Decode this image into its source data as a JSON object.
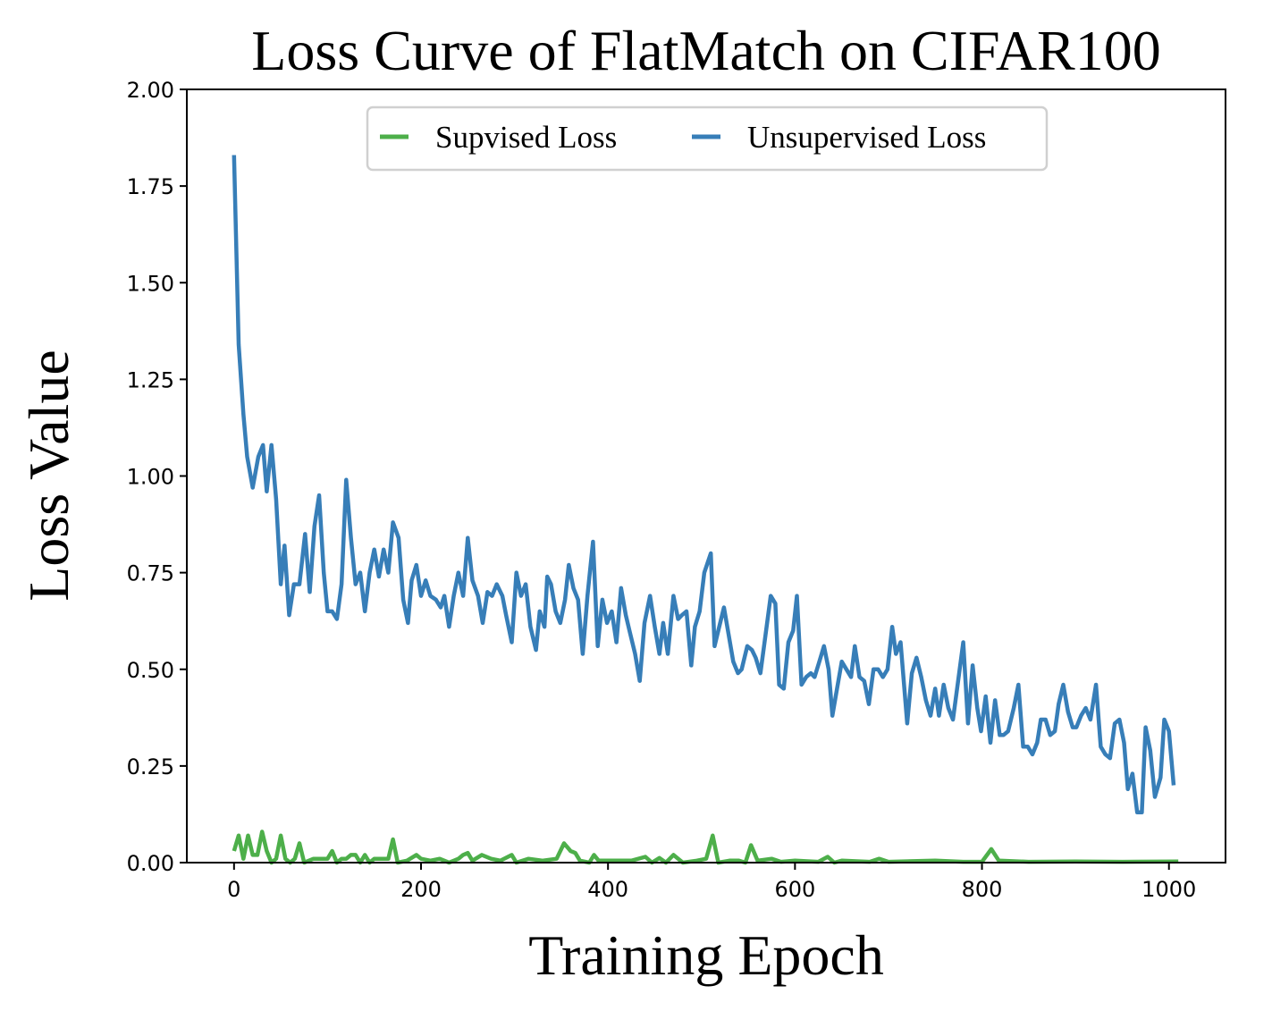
{
  "chart_data": {
    "type": "line",
    "title": "Loss Curve of FlatMatch on CIFAR100",
    "xlabel": "Training Epoch",
    "ylabel": "Loss Value",
    "xlim": [
      -50.5,
      1060.5
    ],
    "ylim": [
      0,
      2
    ],
    "xticks": [
      0,
      200,
      400,
      600,
      800,
      1000
    ],
    "xtick_labels": [
      "0",
      "200",
      "400",
      "600",
      "800",
      "1000"
    ],
    "yticks": [
      0,
      0.25,
      0.5,
      0.75,
      1.0,
      1.25,
      1.5,
      1.75,
      2.0
    ],
    "ytick_labels": [
      "0.00",
      "0.25",
      "0.50",
      "0.75",
      "1.00",
      "1.25",
      "1.50",
      "1.75",
      "2.00"
    ],
    "grid": false,
    "legend": {
      "placement": "upper-center",
      "columns": 2
    },
    "series": [
      {
        "name": "Supvised Loss",
        "color": "#4daf4a",
        "points": [
          [
            0,
            0.03
          ],
          [
            5,
            0.07
          ],
          [
            10,
            0.01
          ],
          [
            15,
            0.07
          ],
          [
            20,
            0.02
          ],
          [
            25,
            0.02
          ],
          [
            30,
            0.08
          ],
          [
            35,
            0.03
          ],
          [
            40,
            0.0
          ],
          [
            45,
            0.01
          ],
          [
            50,
            0.07
          ],
          [
            55,
            0.01
          ],
          [
            60,
            0.0
          ],
          [
            65,
            0.01
          ],
          [
            70,
            0.05
          ],
          [
            75,
            0.0
          ],
          [
            80,
            0.005
          ],
          [
            85,
            0.01
          ],
          [
            90,
            0.01
          ],
          [
            95,
            0.01
          ],
          [
            100,
            0.01
          ],
          [
            105,
            0.03
          ],
          [
            110,
            0.0
          ],
          [
            115,
            0.01
          ],
          [
            120,
            0.01
          ],
          [
            125,
            0.02
          ],
          [
            130,
            0.02
          ],
          [
            135,
            0.0
          ],
          [
            140,
            0.02
          ],
          [
            145,
            0.0
          ],
          [
            150,
            0.01
          ],
          [
            160,
            0.01
          ],
          [
            165,
            0.01
          ],
          [
            170,
            0.06
          ],
          [
            175,
            0.0
          ],
          [
            185,
            0.005
          ],
          [
            195,
            0.02
          ],
          [
            200,
            0.01
          ],
          [
            210,
            0.005
          ],
          [
            220,
            0.01
          ],
          [
            230,
            0.0
          ],
          [
            240,
            0.01
          ],
          [
            245,
            0.02
          ],
          [
            250,
            0.025
          ],
          [
            255,
            0.005
          ],
          [
            265,
            0.02
          ],
          [
            275,
            0.01
          ],
          [
            285,
            0.005
          ],
          [
            297,
            0.02
          ],
          [
            302,
            0.0
          ],
          [
            315,
            0.01
          ],
          [
            330,
            0.005
          ],
          [
            345,
            0.01
          ],
          [
            353,
            0.05
          ],
          [
            360,
            0.03
          ],
          [
            365,
            0.025
          ],
          [
            370,
            0.005
          ],
          [
            380,
            0.0
          ],
          [
            385,
            0.02
          ],
          [
            390,
            0.005
          ],
          [
            410,
            0.005
          ],
          [
            425,
            0.005
          ],
          [
            440,
            0.015
          ],
          [
            447,
            0.0
          ],
          [
            455,
            0.012
          ],
          [
            462,
            0.0
          ],
          [
            470,
            0.02
          ],
          [
            480,
            0.0
          ],
          [
            495,
            0.005
          ],
          [
            505,
            0.01
          ],
          [
            512,
            0.07
          ],
          [
            518,
            0.0
          ],
          [
            530,
            0.005
          ],
          [
            540,
            0.005
          ],
          [
            547,
            0.0
          ],
          [
            553,
            0.045
          ],
          [
            560,
            0.005
          ],
          [
            575,
            0.01
          ],
          [
            585,
            0.002
          ],
          [
            600,
            0.005
          ],
          [
            625,
            0.002
          ],
          [
            635,
            0.015
          ],
          [
            642,
            0.0
          ],
          [
            650,
            0.005
          ],
          [
            680,
            0.002
          ],
          [
            690,
            0.01
          ],
          [
            700,
            0.002
          ],
          [
            750,
            0.005
          ],
          [
            780,
            0.002
          ],
          [
            800,
            0.002
          ],
          [
            810,
            0.035
          ],
          [
            818,
            0.005
          ],
          [
            850,
            0.002
          ],
          [
            900,
            0.003
          ],
          [
            950,
            0.002
          ],
          [
            1010,
            0.003
          ]
        ]
      },
      {
        "name": "Unsupervised Loss",
        "color": "#377eb8",
        "points": [
          [
            0,
            1.83
          ],
          [
            5,
            1.34
          ],
          [
            10,
            1.16
          ],
          [
            14,
            1.05
          ],
          [
            20,
            0.97
          ],
          [
            26,
            1.05
          ],
          [
            31,
            1.08
          ],
          [
            35,
            0.96
          ],
          [
            40,
            1.08
          ],
          [
            45,
            0.94
          ],
          [
            50,
            0.72
          ],
          [
            54,
            0.82
          ],
          [
            59,
            0.64
          ],
          [
            64,
            0.72
          ],
          [
            70,
            0.72
          ],
          [
            76,
            0.85
          ],
          [
            81,
            0.7
          ],
          [
            86,
            0.87
          ],
          [
            91,
            0.95
          ],
          [
            96,
            0.75
          ],
          [
            100,
            0.65
          ],
          [
            105,
            0.65
          ],
          [
            110,
            0.63
          ],
          [
            115,
            0.72
          ],
          [
            120,
            0.99
          ],
          [
            125,
            0.84
          ],
          [
            130,
            0.72
          ],
          [
            135,
            0.75
          ],
          [
            140,
            0.65
          ],
          [
            145,
            0.75
          ],
          [
            150,
            0.81
          ],
          [
            155,
            0.74
          ],
          [
            160,
            0.81
          ],
          [
            165,
            0.75
          ],
          [
            170,
            0.88
          ],
          [
            176,
            0.84
          ],
          [
            181,
            0.68
          ],
          [
            186,
            0.62
          ],
          [
            190,
            0.73
          ],
          [
            195,
            0.77
          ],
          [
            200,
            0.69
          ],
          [
            205,
            0.73
          ],
          [
            210,
            0.69
          ],
          [
            216,
            0.68
          ],
          [
            221,
            0.66
          ],
          [
            225,
            0.69
          ],
          [
            230,
            0.61
          ],
          [
            235,
            0.69
          ],
          [
            240,
            0.75
          ],
          [
            245,
            0.69
          ],
          [
            250,
            0.84
          ],
          [
            255,
            0.73
          ],
          [
            261,
            0.69
          ],
          [
            266,
            0.62
          ],
          [
            271,
            0.7
          ],
          [
            276,
            0.69
          ],
          [
            281,
            0.72
          ],
          [
            287,
            0.69
          ],
          [
            291,
            0.64
          ],
          [
            297,
            0.57
          ],
          [
            302,
            0.75
          ],
          [
            307,
            0.69
          ],
          [
            312,
            0.72
          ],
          [
            317,
            0.61
          ],
          [
            323,
            0.55
          ],
          [
            327,
            0.65
          ],
          [
            332,
            0.61
          ],
          [
            335,
            0.74
          ],
          [
            339,
            0.72
          ],
          [
            344,
            0.65
          ],
          [
            349,
            0.62
          ],
          [
            354,
            0.68
          ],
          [
            358,
            0.77
          ],
          [
            363,
            0.71
          ],
          [
            368,
            0.68
          ],
          [
            373,
            0.54
          ],
          [
            378,
            0.69
          ],
          [
            384,
            0.83
          ],
          [
            389,
            0.56
          ],
          [
            394,
            0.68
          ],
          [
            399,
            0.62
          ],
          [
            404,
            0.65
          ],
          [
            409,
            0.57
          ],
          [
            414,
            0.71
          ],
          [
            419,
            0.64
          ],
          [
            423,
            0.6
          ],
          [
            429,
            0.54
          ],
          [
            434,
            0.47
          ],
          [
            439,
            0.62
          ],
          [
            445,
            0.69
          ],
          [
            450,
            0.61
          ],
          [
            455,
            0.54
          ],
          [
            459,
            0.62
          ],
          [
            464,
            0.54
          ],
          [
            470,
            0.69
          ],
          [
            475,
            0.63
          ],
          [
            479,
            0.64
          ],
          [
            484,
            0.65
          ],
          [
            489,
            0.51
          ],
          [
            493,
            0.61
          ],
          [
            498,
            0.65
          ],
          [
            503,
            0.75
          ],
          [
            510,
            0.8
          ],
          [
            514,
            0.56
          ],
          [
            519,
            0.61
          ],
          [
            524,
            0.66
          ],
          [
            529,
            0.59
          ],
          [
            534,
            0.52
          ],
          [
            539,
            0.49
          ],
          [
            543,
            0.5
          ],
          [
            549,
            0.56
          ],
          [
            554,
            0.55
          ],
          [
            558,
            0.53
          ],
          [
            563,
            0.49
          ],
          [
            568,
            0.58
          ],
          [
            574,
            0.69
          ],
          [
            579,
            0.67
          ],
          [
            583,
            0.46
          ],
          [
            588,
            0.45
          ],
          [
            593,
            0.57
          ],
          [
            598,
            0.6
          ],
          [
            602,
            0.69
          ],
          [
            607,
            0.46
          ],
          [
            612,
            0.48
          ],
          [
            617,
            0.49
          ],
          [
            621,
            0.48
          ],
          [
            626,
            0.52
          ],
          [
            631,
            0.56
          ],
          [
            636,
            0.5
          ],
          [
            640,
            0.38
          ],
          [
            645,
            0.45
          ],
          [
            650,
            0.52
          ],
          [
            655,
            0.5
          ],
          [
            660,
            0.48
          ],
          [
            664,
            0.56
          ],
          [
            669,
            0.48
          ],
          [
            674,
            0.47
          ],
          [
            679,
            0.41
          ],
          [
            684,
            0.5
          ],
          [
            689,
            0.5
          ],
          [
            694,
            0.48
          ],
          [
            699,
            0.5
          ],
          [
            704,
            0.61
          ],
          [
            708,
            0.54
          ],
          [
            713,
            0.57
          ],
          [
            720,
            0.36
          ],
          [
            725,
            0.49
          ],
          [
            730,
            0.53
          ],
          [
            735,
            0.48
          ],
          [
            740,
            0.42
          ],
          [
            745,
            0.38
          ],
          [
            750,
            0.45
          ],
          [
            754,
            0.38
          ],
          [
            759,
            0.46
          ],
          [
            764,
            0.4
          ],
          [
            769,
            0.37
          ],
          [
            774,
            0.46
          ],
          [
            780,
            0.57
          ],
          [
            785,
            0.36
          ],
          [
            790,
            0.51
          ],
          [
            795,
            0.4
          ],
          [
            799,
            0.34
          ],
          [
            804,
            0.43
          ],
          [
            809,
            0.31
          ],
          [
            814,
            0.42
          ],
          [
            819,
            0.33
          ],
          [
            823,
            0.33
          ],
          [
            828,
            0.34
          ],
          [
            834,
            0.4
          ],
          [
            839,
            0.46
          ],
          [
            844,
            0.3
          ],
          [
            849,
            0.3
          ],
          [
            854,
            0.28
          ],
          [
            859,
            0.31
          ],
          [
            863,
            0.37
          ],
          [
            868,
            0.37
          ],
          [
            873,
            0.33
          ],
          [
            878,
            0.34
          ],
          [
            882,
            0.41
          ],
          [
            887,
            0.46
          ],
          [
            892,
            0.39
          ],
          [
            897,
            0.35
          ],
          [
            901,
            0.35
          ],
          [
            906,
            0.38
          ],
          [
            911,
            0.4
          ],
          [
            916,
            0.37
          ],
          [
            922,
            0.46
          ],
          [
            927,
            0.3
          ],
          [
            932,
            0.28
          ],
          [
            937,
            0.27
          ],
          [
            942,
            0.36
          ],
          [
            947,
            0.37
          ],
          [
            952,
            0.31
          ],
          [
            956,
            0.19
          ],
          [
            961,
            0.23
          ],
          [
            966,
            0.13
          ],
          [
            971,
            0.13
          ],
          [
            975,
            0.35
          ],
          [
            980,
            0.29
          ],
          [
            985,
            0.17
          ],
          [
            991,
            0.22
          ],
          [
            995,
            0.37
          ],
          [
            1000,
            0.34
          ],
          [
            1005,
            0.2
          ]
        ]
      }
    ]
  }
}
